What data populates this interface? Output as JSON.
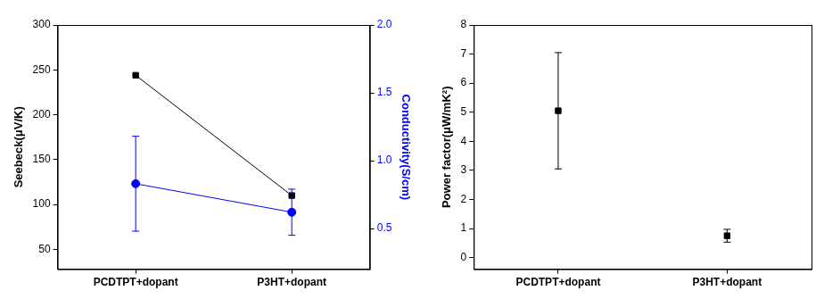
{
  "chart_data": [
    {
      "type": "line",
      "categories": [
        "PCDTPT+dopant",
        "P3HT+dopant"
      ],
      "ylabel": "Seebeck(μV/K)",
      "y2label": "Conductivity(S/cm)",
      "series": [
        {
          "color": "#000000",
          "marker": "square",
          "values": [
            244,
            110
          ]
        },
        {
          "color": "#0000ff",
          "marker": "circle",
          "values": [
            0.83,
            0.62
          ],
          "error": [
            0.35,
            0.17
          ],
          "axis": "y2"
        }
      ],
      "ylim": [
        28,
        300
      ],
      "yticks": [
        50,
        100,
        150,
        200,
        250,
        300
      ],
      "y2lim": [
        0.2,
        2.0
      ],
      "y2ticks": [
        0.5,
        {
          "value": 1,
          "label": "1.0"
        },
        1.5,
        {
          "value": 2,
          "label": "2.0"
        }
      ],
      "grid": false
    },
    {
      "type": "scatter",
      "categories": [
        "PCDTPT+dopant",
        "P3HT+dopant"
      ],
      "ylabel": "Power factor(μW/mK²)",
      "values": [
        5.05,
        0.75
      ],
      "error": [
        2.0,
        0.22
      ],
      "color": "#000000",
      "marker": "square",
      "ylim": [
        -0.4,
        8
      ],
      "yticks": [
        0,
        1,
        2,
        3,
        4,
        5,
        6,
        7,
        8
      ],
      "grid": false
    }
  ]
}
